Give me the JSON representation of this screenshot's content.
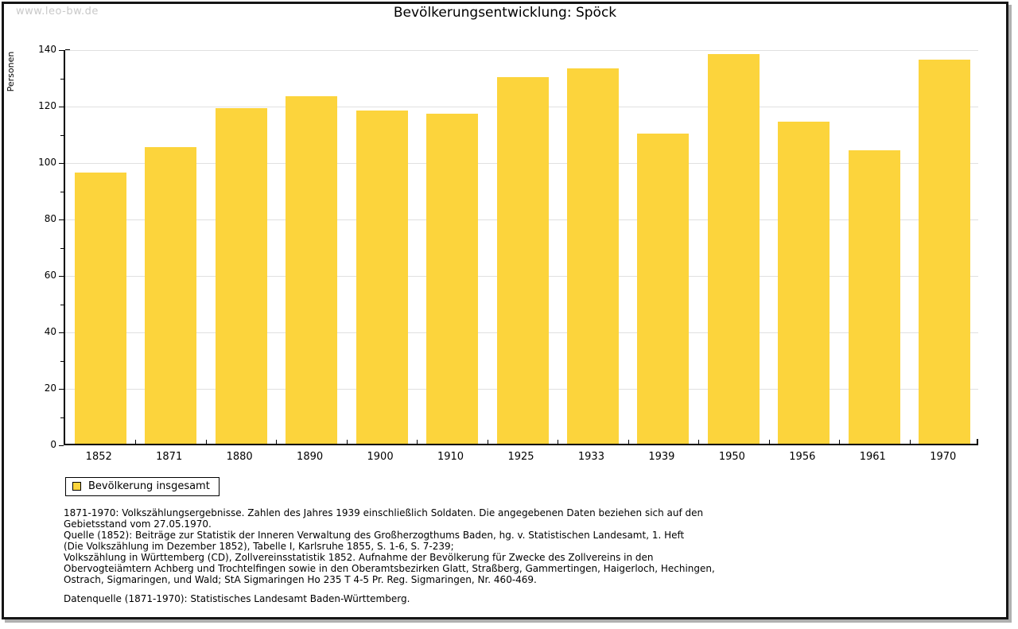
{
  "watermark": "www.leo-bw.de",
  "chart_data": {
    "type": "bar",
    "title": "Bevölkerungsentwicklung: Spöck",
    "xlabel": "",
    "ylabel": "Personen",
    "categories": [
      "1852",
      "1871",
      "1880",
      "1890",
      "1900",
      "1910",
      "1925",
      "1933",
      "1939",
      "1950",
      "1956",
      "1961",
      "1970"
    ],
    "values": [
      96,
      105,
      119,
      123,
      118,
      117,
      130,
      133,
      110,
      138,
      114,
      104,
      136
    ],
    "ylim": [
      0,
      140
    ],
    "ytick_step": 20,
    "yminor_step": 10,
    "grid": true,
    "legend_position": "bottom-left",
    "bar_color": "#fcd43c",
    "gridline_color": "#e0e0e0",
    "series": [
      {
        "name": "Bevölkerung insgesamt",
        "values": [
          96,
          105,
          119,
          123,
          118,
          117,
          130,
          133,
          110,
          138,
          114,
          104,
          136
        ]
      }
    ]
  },
  "legend": {
    "label": "Bevölkerung insgesamt",
    "swatch_color": "#fcd43c"
  },
  "footnotes": {
    "lines": [
      "1871-1970: Volkszählungsergebnisse. Zahlen des Jahres 1939 einschließlich Soldaten. Die angegebenen Daten beziehen sich auf den",
      "Gebietsstand vom 27.05.1970.",
      "Quelle (1852): Beiträge zur Statistik der Inneren Verwaltung des Großherzogthums Baden, hg. v. Statistischen Landesamt, 1. Heft",
      "(Die Volkszählung im Dezember 1852), Tabelle I, Karlsruhe 1855, S. 1-6, S. 7-239;",
      "Volkszählung in Württemberg (CD), Zollvereinsstatistik 1852. Aufnahme der Bevölkerung für Zwecke des Zollvereins in den",
      "Obervogteiämtern Achberg und Trochtelfingen sowie in den Oberamtsbezirken Glatt, Straßberg, Gammertingen, Haigerloch, Hechingen,",
      "Ostrach, Sigmaringen, und Wald; StA Sigmaringen Ho 235 T 4-5 Pr. Reg. Sigmaringen, Nr. 460-469."
    ],
    "datasource": "Datenquelle (1871-1970): Statistisches Landesamt Baden-Württemberg."
  }
}
